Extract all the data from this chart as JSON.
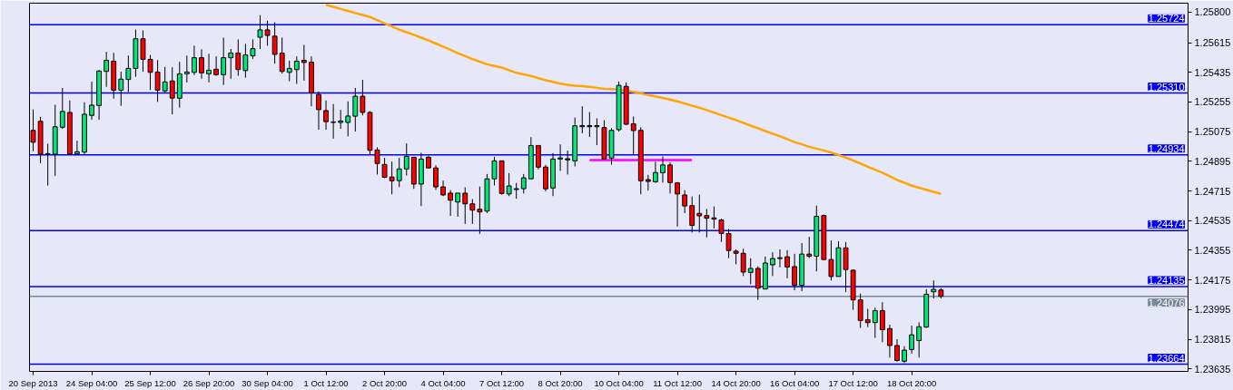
{
  "chart_data": {
    "type": "candlestick",
    "categories": [
      "20 Sep 2013",
      null,
      null,
      null,
      null,
      null,
      null,
      null,
      "24 Sep 04:00",
      null,
      null,
      null,
      null,
      null,
      null,
      null,
      "25 Sep 12:00",
      null,
      null,
      null,
      null,
      null,
      null,
      null,
      "26 Sep 20:00",
      null,
      null,
      null,
      null,
      null,
      null,
      null,
      "30 Sep 04:00",
      null,
      null,
      null,
      null,
      null,
      null,
      null,
      "1 Oct 12:00",
      null,
      null,
      null,
      null,
      null,
      null,
      null,
      "2 Oct 20:00",
      null,
      null,
      null,
      null,
      null,
      null,
      null,
      "4 Oct 04:00",
      null,
      null,
      null,
      null,
      null,
      null,
      null,
      "7 Oct 12:00",
      null,
      null,
      null,
      null,
      null,
      null,
      null,
      "8 Oct 20:00",
      null,
      null,
      null,
      null,
      null,
      null,
      null,
      "10 Oct 04:00",
      null,
      null,
      null,
      null,
      null,
      null,
      null,
      "11 Oct 12:00",
      null,
      null,
      null,
      null,
      null,
      null,
      null,
      "14 Oct 20:00",
      null,
      null,
      null,
      null,
      null,
      null,
      null,
      "16 Oct 04:00",
      null,
      null,
      null,
      null,
      null,
      null,
      null,
      "17 Oct 12:00",
      null,
      null,
      null,
      null,
      null,
      null,
      null,
      "18 Oct 20:00",
      null,
      null,
      null,
      null
    ],
    "ohlc": [
      [
        1.25083,
        1.2521,
        1.24956,
        1.25011
      ],
      [
        1.25138,
        1.25165,
        1.24884,
        1.24938
      ],
      [
        1.24938,
        1.25002,
        1.24748,
        1.24942
      ],
      [
        1.24938,
        1.25238,
        1.24807,
        1.25105
      ],
      [
        1.25102,
        1.25341,
        1.25092,
        1.25198
      ],
      [
        1.25192,
        1.25265,
        1.24938,
        1.24938
      ],
      [
        1.2494,
        1.2502,
        1.24938,
        1.24953
      ],
      [
        1.24951,
        1.25254,
        1.24938,
        1.25181
      ],
      [
        1.25174,
        1.25379,
        1.25147,
        1.25236
      ],
      [
        1.25234,
        1.2545,
        1.25147,
        1.25443
      ],
      [
        1.25441,
        1.25559,
        1.25347,
        1.25508
      ],
      [
        1.25503,
        1.25553,
        1.25276,
        1.25327
      ],
      [
        1.25327,
        1.25439,
        1.25232,
        1.25394
      ],
      [
        1.25392,
        1.25537,
        1.25316,
        1.25459
      ],
      [
        1.25459,
        1.25695,
        1.25408,
        1.25639
      ],
      [
        1.25639,
        1.2569,
        1.25439,
        1.25514
      ],
      [
        1.25514,
        1.25541,
        1.25328,
        1.25435
      ],
      [
        1.25437,
        1.2551,
        1.25256,
        1.25327
      ],
      [
        1.25323,
        1.25468,
        1.2531,
        1.25377
      ],
      [
        1.25383,
        1.25466,
        1.2518,
        1.25279
      ],
      [
        1.25278,
        1.25499,
        1.25221,
        1.25426
      ],
      [
        1.25426,
        1.25537,
        1.25374,
        1.25437
      ],
      [
        1.25435,
        1.25597,
        1.25419,
        1.25524
      ],
      [
        1.25524,
        1.25575,
        1.25397,
        1.25432
      ],
      [
        1.25426,
        1.25548,
        1.25374,
        1.25448
      ],
      [
        1.25454,
        1.25532,
        1.25414,
        1.25421
      ],
      [
        1.25421,
        1.25646,
        1.25359,
        1.25524
      ],
      [
        1.25524,
        1.25577,
        1.25396,
        1.25552
      ],
      [
        1.25552,
        1.25635,
        1.25414,
        1.25452
      ],
      [
        1.25446,
        1.25608,
        1.25403,
        1.25541
      ],
      [
        1.25535,
        1.25635,
        1.25517,
        1.25579
      ],
      [
        1.25648,
        1.25782,
        1.25577,
        1.25693
      ],
      [
        1.25693,
        1.25749,
        1.25597,
        1.25659
      ],
      [
        1.25655,
        1.25739,
        1.25488,
        1.25544
      ],
      [
        1.25552,
        1.25646,
        1.25428,
        1.25441
      ],
      [
        1.25435,
        1.25506,
        1.25381,
        1.25459
      ],
      [
        1.25452,
        1.25532,
        1.25365,
        1.25503
      ],
      [
        1.25508,
        1.25602,
        1.25385,
        1.25495
      ],
      [
        1.25497,
        1.25532,
        1.25229,
        1.2531
      ],
      [
        1.25301,
        1.25319,
        1.25087,
        1.25209
      ],
      [
        1.25203,
        1.25265,
        1.25087,
        1.25136
      ],
      [
        1.25134,
        1.25243,
        1.25033,
        1.25131
      ],
      [
        1.25131,
        1.25207,
        1.25092,
        1.2514
      ],
      [
        1.25131,
        1.25259,
        1.25047,
        1.2517
      ],
      [
        1.25169,
        1.25341,
        1.25076,
        1.2529
      ],
      [
        1.2529,
        1.2539,
        1.25174,
        1.25192
      ],
      [
        1.25192,
        1.252,
        1.24938,
        1.24962
      ],
      [
        1.24964,
        1.2498,
        1.24815,
        1.24882
      ],
      [
        1.24876,
        1.24916,
        1.24793,
        1.24798
      ],
      [
        1.248,
        1.24893,
        1.24695,
        1.24777
      ],
      [
        1.24778,
        1.24916,
        1.24739,
        1.24849
      ],
      [
        1.24849,
        1.25004,
        1.24809,
        1.24925
      ],
      [
        1.2492,
        1.2492,
        1.24728,
        1.24757
      ],
      [
        1.24757,
        1.24947,
        1.24624,
        1.24909
      ],
      [
        1.2492,
        1.24929,
        1.24855,
        1.24855
      ],
      [
        1.24855,
        1.24871,
        1.24722,
        1.2474
      ],
      [
        1.2474,
        1.24778,
        1.24684,
        1.24691
      ],
      [
        1.24702,
        1.2472,
        1.24564,
        1.24659
      ],
      [
        1.24648,
        1.24702,
        1.24559,
        1.24702
      ],
      [
        1.24702,
        1.24737,
        1.24515,
        1.24637
      ],
      [
        1.24637,
        1.24666,
        1.24515,
        1.24599
      ],
      [
        1.24604,
        1.24742,
        1.24455,
        1.24588
      ],
      [
        1.24593,
        1.24818,
        1.24581,
        1.24789
      ],
      [
        1.24789,
        1.24922,
        1.24749,
        1.24898
      ],
      [
        1.24898,
        1.24898,
        1.24693,
        1.247
      ],
      [
        1.24697,
        1.24824,
        1.24684,
        1.24746
      ],
      [
        1.24724,
        1.24764,
        1.24668,
        1.24729
      ],
      [
        1.24729,
        1.24818,
        1.247,
        1.24795
      ],
      [
        1.24789,
        1.25042,
        1.24789,
        1.24991
      ],
      [
        1.24991,
        1.24991,
        1.24847,
        1.2486
      ],
      [
        1.2486,
        1.24873,
        1.24713,
        1.24728
      ],
      [
        1.24733,
        1.24945,
        1.24684,
        1.24909
      ],
      [
        1.24909,
        1.24998,
        1.24837,
        1.24916
      ],
      [
        1.24911,
        1.2496,
        1.24815,
        1.24904
      ],
      [
        1.24898,
        1.25161,
        1.24864,
        1.25111
      ],
      [
        1.25105,
        1.25229,
        1.25065,
        1.25112
      ],
      [
        1.25112,
        1.25194,
        1.25043,
        1.25105
      ],
      [
        1.25105,
        1.25156,
        1.24993,
        1.25112
      ],
      [
        1.251,
        1.25145,
        1.24909,
        1.24909
      ],
      [
        1.24915,
        1.25096,
        1.24875,
        1.25083
      ],
      [
        1.25087,
        1.25379,
        1.25076,
        1.25356
      ],
      [
        1.2535,
        1.25374,
        1.25116,
        1.2512
      ],
      [
        1.25123,
        1.25167,
        1.24938,
        1.25082
      ],
      [
        1.25083,
        1.25102,
        1.24695,
        1.24777
      ],
      [
        1.24784,
        1.24813,
        1.24717,
        1.24773
      ],
      [
        1.24771,
        1.24893,
        1.24764,
        1.24827
      ],
      [
        1.24826,
        1.24925,
        1.24766,
        1.24873
      ],
      [
        1.24873,
        1.24889,
        1.247,
        1.24766
      ],
      [
        1.24764,
        1.24769,
        1.24499,
        1.24697
      ],
      [
        1.24691,
        1.2472,
        1.24581,
        1.24624
      ],
      [
        1.24626,
        1.24682,
        1.24463,
        1.24506
      ],
      [
        1.24579,
        1.24693,
        1.24463,
        1.24564
      ],
      [
        1.24566,
        1.24606,
        1.24434,
        1.2455
      ],
      [
        1.24552,
        1.24621,
        1.24488,
        1.24544
      ],
      [
        1.24539,
        1.24548,
        1.24406,
        1.24457
      ],
      [
        1.24457,
        1.24484,
        1.24308,
        1.24354
      ],
      [
        1.2435,
        1.24361,
        1.2427,
        1.24337
      ],
      [
        1.24337,
        1.24365,
        1.24199,
        1.24223
      ],
      [
        1.24221,
        1.24307,
        1.24149,
        1.24245
      ],
      [
        1.24245,
        1.24258,
        1.24054,
        1.24125
      ],
      [
        1.2412,
        1.24317,
        1.24118,
        1.24278
      ],
      [
        1.24267,
        1.24343,
        1.24199,
        1.24305
      ],
      [
        1.24305,
        1.24361,
        1.24252,
        1.2431
      ],
      [
        1.24316,
        1.24356,
        1.24185,
        1.24254
      ],
      [
        1.24256,
        1.24334,
        1.24112,
        1.24143
      ],
      [
        1.24143,
        1.24399,
        1.24107,
        1.24332
      ],
      [
        1.24332,
        1.24437,
        1.24308,
        1.24319
      ],
      [
        1.24319,
        1.24626,
        1.24227,
        1.24561
      ],
      [
        1.24566,
        1.24572,
        1.24299,
        1.24299
      ],
      [
        1.24299,
        1.24415,
        1.24172,
        1.24196
      ],
      [
        1.24196,
        1.2441,
        1.24196,
        1.2437
      ],
      [
        1.2437,
        1.24405,
        1.24101,
        1.24238
      ],
      [
        1.24234,
        1.24239,
        1.23994,
        1.24054
      ],
      [
        1.24054,
        1.24092,
        1.23884,
        1.23929
      ],
      [
        1.23934,
        1.24,
        1.23889,
        1.23916
      ],
      [
        1.23916,
        1.24007,
        1.23824,
        1.23989
      ],
      [
        1.23989,
        1.2404,
        1.23797,
        1.23873
      ],
      [
        1.2388,
        1.23904,
        1.23704,
        1.23777
      ],
      [
        1.23777,
        1.23816,
        1.23679,
        1.23686
      ],
      [
        1.23682,
        1.23773,
        1.23671,
        1.23749
      ],
      [
        1.23753,
        1.23898,
        1.23728,
        1.23842
      ],
      [
        1.23807,
        1.23918,
        1.23704,
        1.23891
      ],
      [
        1.23889,
        1.24119,
        1.23884,
        1.24088
      ],
      [
        1.24103,
        1.24172,
        1.24063,
        1.24118
      ],
      [
        1.24114,
        1.24125,
        1.24063,
        1.24076
      ]
    ],
    "colors": [
      "#ff0000",
      "#ff0000",
      "#00e67a",
      "#00e67a",
      "#00e67a",
      "#ff0000",
      "#00e67a",
      "#00e67a",
      "#00e67a",
      "#00e67a",
      "#00e67a",
      "#ff0000",
      "#00e67a",
      "#00e67a",
      "#00e67a",
      "#ff0000",
      "#ff0000",
      "#ff0000",
      "#00e67a",
      "#ff0000",
      "#00e67a",
      "#00e67a",
      "#00e67a",
      "#ff0000",
      "#00e67a",
      "#ff0000",
      "#00e67a",
      "#00e67a",
      "#ff0000",
      "#00e67a",
      "#00e67a",
      "#00e67a",
      "#ff0000",
      "#ff0000",
      "#ff0000",
      "#00e67a",
      "#00e67a",
      "#ff0000",
      "#ff0000",
      "#ff0000",
      "#ff0000",
      "#ff0000",
      "#00e67a",
      "#00e67a",
      "#00e67a",
      "#ff0000",
      "#ff0000",
      "#ff0000",
      "#ff0000",
      "#ff0000",
      "#00e67a",
      "#00e67a",
      "#ff0000",
      "#00e67a",
      "#ff0000",
      "#ff0000",
      "#ff0000",
      "#ff0000",
      "#00e67a",
      "#ff0000",
      "#ff0000",
      "#ff0000",
      "#00e67a",
      "#00e67a",
      "#ff0000",
      "#00e67a",
      "#00e67a",
      "#00e67a",
      "#00e67a",
      "#ff0000",
      "#ff0000",
      "#00e67a",
      "#00e67a",
      "#ff0000",
      "#00e67a",
      "#00e67a",
      "#ff0000",
      "#00e67a",
      "#ff0000",
      "#00e67a",
      "#00e67a",
      "#ff0000",
      "#ff0000",
      "#ff0000",
      "#ff0000",
      "#00e67a",
      "#00e67a",
      "#ff0000",
      "#ff0000",
      "#ff0000",
      "#ff0000",
      "#ff0000",
      "#ff0000",
      "#ff0000",
      "#ff0000",
      "#ff0000",
      "#ff0000",
      "#ff0000",
      "#00e67a",
      "#ff0000",
      "#00e67a",
      "#00e67a",
      "#00e67a",
      "#ff0000",
      "#ff0000",
      "#00e67a",
      "#ff0000",
      "#00e67a",
      "#ff0000",
      "#ff0000",
      "#00e67a",
      "#ff0000",
      "#ff0000",
      "#ff0000",
      "#ff0000",
      "#00e67a",
      "#ff0000",
      "#ff0000",
      "#ff0000",
      "#00e67a",
      "#00e67a",
      "#00e67a",
      "#00e67a",
      "#00e67a",
      "#ff0000"
    ],
    "series": [
      {
        "type": "line",
        "color": "#ffa500",
        "values": [
          null,
          null,
          null,
          null,
          null,
          null,
          null,
          null,
          null,
          null,
          null,
          null,
          null,
          null,
          null,
          null,
          null,
          null,
          null,
          null,
          null,
          null,
          null,
          null,
          null,
          null,
          null,
          null,
          null,
          null,
          null,
          null,
          null,
          null,
          null,
          null,
          null,
          null,
          null,
          null,
          1.25845,
          1.25833,
          1.2582,
          1.25808,
          1.25795,
          1.25783,
          1.25771,
          1.25752,
          1.25732,
          1.25714,
          1.25695,
          1.25679,
          1.25663,
          1.25646,
          1.25629,
          1.2561,
          1.25591,
          1.25572,
          1.25552,
          1.25534,
          1.25516,
          1.255,
          1.25484,
          1.25474,
          1.25464,
          1.25448,
          1.25432,
          1.25423,
          1.25413,
          1.254,
          1.25387,
          1.25377,
          1.25366,
          1.2536,
          1.25354,
          1.25351,
          1.25347,
          1.25341,
          1.25335,
          1.25333,
          1.2533,
          1.25324,
          1.25317,
          1.25308,
          1.25298,
          1.25289,
          1.2528,
          1.2527,
          1.25259,
          1.25246,
          1.25233,
          1.2522,
          1.25206,
          1.25191,
          1.25176,
          1.25161,
          1.25146,
          1.25129,
          1.25112,
          1.25096,
          1.25079,
          1.25063,
          1.25047,
          1.2503,
          1.25012,
          1.24998,
          1.24983,
          1.24972,
          1.24961,
          1.24948,
          1.24934,
          1.24918,
          1.24901,
          1.24882,
          1.24862,
          1.24844,
          1.24826,
          1.24804,
          1.24782,
          1.24765,
          1.24747,
          1.24735,
          1.24722,
          1.2471,
          1.24698
        ]
      },
      {
        "type": "line",
        "color": "#ff00ff",
        "values": [
          null,
          null,
          null,
          null,
          null,
          null,
          null,
          null,
          null,
          null,
          null,
          null,
          null,
          null,
          null,
          null,
          null,
          null,
          null,
          null,
          null,
          null,
          null,
          null,
          null,
          null,
          null,
          null,
          null,
          null,
          null,
          null,
          null,
          null,
          null,
          null,
          null,
          null,
          null,
          null,
          null,
          null,
          null,
          null,
          null,
          null,
          null,
          null,
          null,
          null,
          null,
          null,
          null,
          null,
          null,
          null,
          null,
          null,
          null,
          null,
          null,
          null,
          null,
          null,
          null,
          null,
          null,
          null,
          null,
          null,
          null,
          null,
          null,
          null,
          null,
          null,
          1.24902,
          1.24902,
          1.24902,
          1.24902,
          1.24902,
          1.24902,
          1.24902,
          1.24902,
          1.24902,
          1.24902,
          1.24902,
          1.24902,
          1.24902,
          1.24902,
          1.24902,
          null,
          null,
          null,
          null,
          null,
          null,
          null,
          null,
          null,
          null,
          null,
          null,
          null,
          null,
          null,
          null,
          null,
          null,
          null,
          null,
          null,
          null,
          null,
          null,
          null,
          null,
          null,
          null,
          null,
          null,
          null,
          null,
          null,
          null
        ]
      }
    ],
    "ref_lines": [
      {
        "axis": "y",
        "value": 1.25724,
        "label": "1.25724",
        "color": "#0000ff"
      },
      {
        "axis": "y",
        "value": 1.2531,
        "label": "1.25310",
        "color": "#0000ff"
      },
      {
        "axis": "y",
        "value": 1.24934,
        "label": "1.24934",
        "color": "#0000ff"
      },
      {
        "axis": "y",
        "value": 1.24474,
        "label": "1.24474",
        "color": "#0000ff"
      },
      {
        "axis": "y",
        "value": 1.24135,
        "label": "1.24135",
        "color": "#0000ff"
      },
      {
        "axis": "y",
        "value": 1.24076,
        "label": "1.24076",
        "color": "#778899"
      },
      {
        "axis": "y",
        "value": 1.23664,
        "label": "1.23664",
        "color": "#0000ff"
      }
    ],
    "ylim": [
      1.2362,
      1.25855
    ],
    "yticks": [
      {
        "value": 1.258,
        "label": "1.25800"
      },
      1.25615,
      1.25435,
      1.25255,
      1.25075,
      1.24895,
      1.24715,
      1.24535,
      1.24355,
      1.24175,
      1.23995,
      1.23815,
      1.23635
    ]
  }
}
